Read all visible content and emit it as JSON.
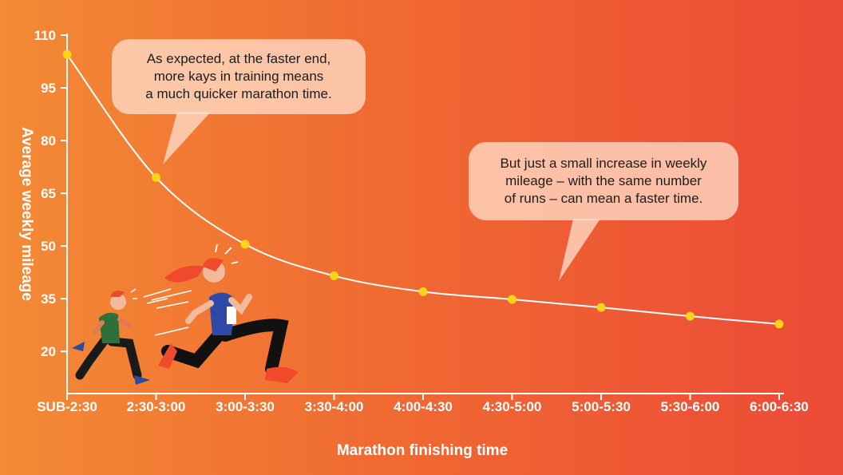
{
  "chart_data": {
    "type": "line",
    "title": "",
    "xlabel": "Marathon finishing time",
    "ylabel": "Average weekly mileage",
    "categories": [
      "SUB-2:30",
      "2:30-3:00",
      "3:00-3:30",
      "3:30-4:00",
      "4:00-4:30",
      "4:30-5:00",
      "5:00-5:30",
      "5:30-6:00",
      "6:00-6:30"
    ],
    "series": [
      {
        "values": [
          104.5,
          69.5,
          50.5,
          41.5,
          37,
          34.8,
          32.5,
          30,
          27.8
        ]
      }
    ],
    "yticks": [
      20,
      35,
      50,
      65,
      80,
      95,
      110
    ],
    "ylim": [
      8,
      110
    ],
    "grid": false,
    "legend": "none",
    "line_color": "#ffffff",
    "point_color": "#ffd21c",
    "annotations": [
      {
        "text_lines": [
          "As expected, at the faster end,",
          "more kays in training means",
          "a much quicker marathon time."
        ]
      },
      {
        "text_lines": [
          "But just a small increase in weekly",
          "mileage – with the same number",
          "of runs – can mean a faster time."
        ]
      }
    ]
  },
  "colors": {
    "background_left": "#f38a34",
    "background_right": "#ec4a36"
  }
}
